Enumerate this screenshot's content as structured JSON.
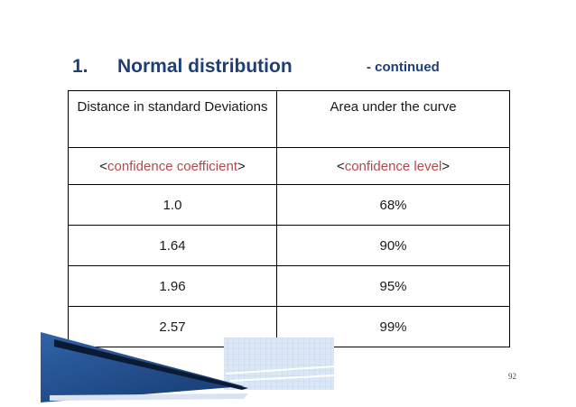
{
  "title": {
    "number": "1.",
    "main": "Normal distribution",
    "continued": "- continued"
  },
  "table": {
    "header_col1": "Distance in standard Deviations",
    "header_col2": "Area  under the curve",
    "subheader_col1": {
      "lt": "<",
      "text": "confidence coefficient",
      "gt": ">"
    },
    "subheader_col2": {
      "lt": "<",
      "text": "confidence level",
      "gt": ">"
    },
    "rows": [
      {
        "distance": "1.0",
        "area": "68%"
      },
      {
        "distance": "1.64",
        "area": "90%"
      },
      {
        "distance": "1.96",
        "area": "95%"
      },
      {
        "distance": "2.57",
        "area": "99%"
      }
    ]
  },
  "page_number": "92",
  "colors": {
    "title": "#1f3f74",
    "accent": "#b5484a"
  }
}
